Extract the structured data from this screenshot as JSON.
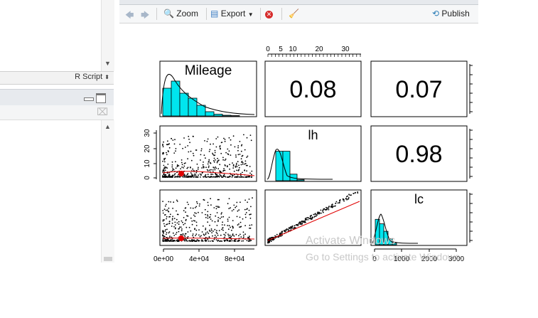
{
  "editor": {
    "script_type": "R Script"
  },
  "plots_toolbar": {
    "zoom": "Zoom",
    "export": "Export",
    "publish": "Publish"
  },
  "watermark": {
    "line1": "Activate Windows",
    "line2": "Go to Settings to activate Windows."
  },
  "chart_data": {
    "type": "pairs",
    "variables": [
      "Mileage",
      "lh",
      "lc"
    ],
    "correlations": [
      {
        "row": "Mileage",
        "col": "lh",
        "value": "0.08"
      },
      {
        "row": "Mileage",
        "col": "lc",
        "value": "0.07"
      },
      {
        "row": "lh",
        "col": "lc",
        "value": "0.98"
      }
    ],
    "axes": {
      "top_ticks": [
        "0",
        "5",
        "10",
        "20",
        "30"
      ],
      "left_ticks": [
        "0",
        "10",
        "20",
        "30"
      ],
      "bottom_left_ticks": [
        "0e+00",
        "4e+04",
        "8e+04"
      ],
      "bottom_right_ticks": [
        "0",
        "1000",
        "2000",
        "3000"
      ]
    },
    "histograms": {
      "Mileage": [
        0.78,
        0.98,
        0.64,
        0.5,
        0.3,
        0.12,
        0.05,
        0.02,
        0.01
      ],
      "lh": [
        0.0,
        0.9,
        0.9,
        0.2,
        0.03
      ],
      "lc": [
        0.85,
        0.7,
        0.45,
        0.2,
        0.05
      ]
    }
  }
}
